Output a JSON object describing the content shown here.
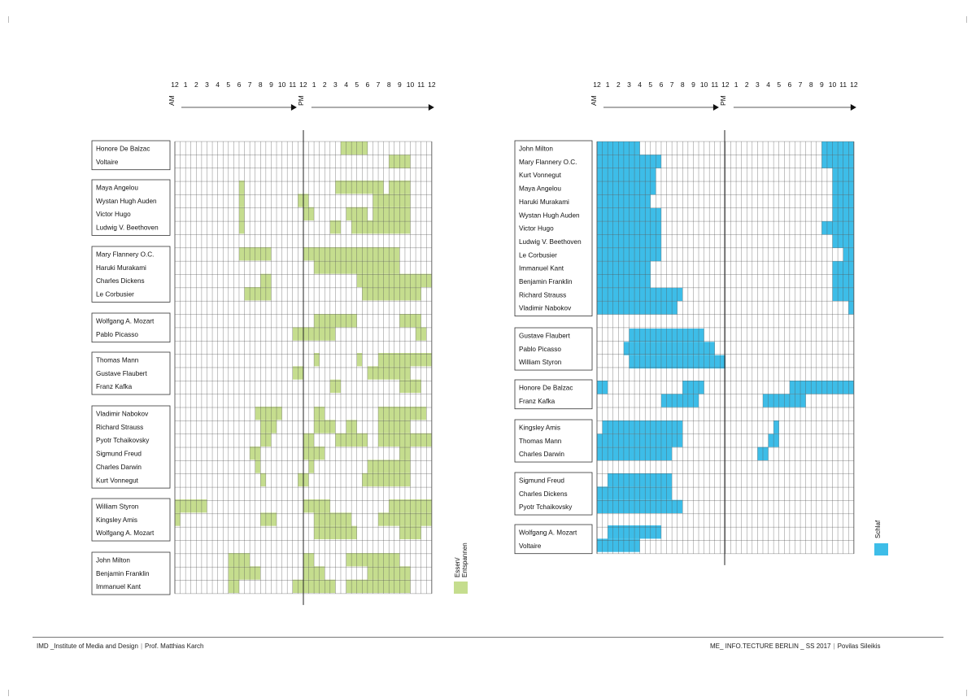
{
  "footer": {
    "institute": "IMD _Institute of Media and Design",
    "professor": "Prof. Matthias Karch",
    "course": "ME_ INFO.TECTURE BERLIN _ SS 2017",
    "author": "Povilas Sileikis"
  },
  "chart_data": [
    {
      "type": "heatmap",
      "legend": "Essen/\nEntspannen",
      "legend_placement": "bottom-right",
      "color": "#c5dd8e",
      "am_label": "AM",
      "pm_label": "PM",
      "hour_ticks": [
        "12",
        "1",
        "2",
        "3",
        "4",
        "5",
        "6",
        "7",
        "8",
        "9",
        "10",
        "11",
        "12",
        "1",
        "2",
        "3",
        "4",
        "5",
        "6",
        "7",
        "8",
        "9",
        "10",
        "11",
        "12"
      ],
      "groups": [
        {
          "names": [
            "Honore De Balzac",
            "Voltaire"
          ],
          "rows": [
            [
              [
                31,
                36
              ]
            ],
            [
              [
                40,
                44
              ]
            ]
          ]
        },
        {
          "names": [
            "Maya Angelou",
            "Wystan Hugh Auden",
            "Victor Hugo",
            "Ludwig V. Beethoven"
          ],
          "rows": [
            [
              [
                12,
                13
              ],
              [
                30,
                39
              ],
              [
                40,
                44
              ]
            ],
            [
              [
                12,
                13
              ],
              [
                23,
                25
              ],
              [
                37,
                44
              ]
            ],
            [
              [
                12,
                13
              ],
              [
                24,
                26
              ],
              [
                32,
                36
              ],
              [
                37,
                44
              ]
            ],
            [
              [
                12,
                13
              ],
              [
                29,
                31
              ],
              [
                33,
                44
              ]
            ]
          ]
        },
        {
          "names": [
            "Mary Flannery O.C.",
            "Haruki Murakami",
            "Charles Dickens",
            "Le Corbusier"
          ],
          "rows": [
            [
              [
                12,
                18
              ],
              [
                24,
                42
              ]
            ],
            [
              [
                26,
                42
              ]
            ],
            [
              [
                16,
                18
              ],
              [
                34,
                48
              ]
            ],
            [
              [
                13,
                18
              ],
              [
                35,
                46
              ]
            ]
          ]
        },
        {
          "names": [
            "Wolfgang A. Mozart",
            "Pablo Picasso"
          ],
          "rows": [
            [
              [
                26,
                34
              ],
              [
                42,
                46
              ]
            ],
            [
              [
                22,
                30
              ],
              [
                45,
                47
              ]
            ]
          ]
        },
        {
          "names": [
            "Thomas Mann",
            "Gustave Flaubert",
            "Franz Kafka"
          ],
          "rows": [
            [
              [
                26,
                27
              ],
              [
                34,
                35
              ],
              [
                38,
                48
              ]
            ],
            [
              [
                22,
                24
              ],
              [
                36,
                44
              ]
            ],
            [
              [
                29,
                31
              ],
              [
                42,
                46
              ]
            ]
          ]
        },
        {
          "names": [
            "Vladimir Nabokov",
            "Richard Strauss",
            "Pyotr Tchaikovsky",
            "Sigmund Freud",
            "Charles Darwin",
            "Kurt Vonnegut"
          ],
          "rows": [
            [
              [
                15,
                20
              ],
              [
                26,
                28
              ],
              [
                38,
                47
              ]
            ],
            [
              [
                16,
                19
              ],
              [
                26,
                30
              ],
              [
                32,
                34
              ],
              [
                38,
                44
              ]
            ],
            [
              [
                16,
                18
              ],
              [
                24,
                26
              ],
              [
                30,
                36
              ],
              [
                38,
                48
              ]
            ],
            [
              [
                14,
                16
              ],
              [
                24,
                28
              ],
              [
                42,
                44
              ]
            ],
            [
              [
                15,
                16
              ],
              [
                25,
                26
              ],
              [
                36,
                44
              ]
            ],
            [
              [
                16,
                17
              ],
              [
                23,
                25
              ],
              [
                35,
                44
              ]
            ]
          ]
        },
        {
          "names": [
            "William Styron",
            "Kingsley Amis",
            "Wolfgang A. Mozart"
          ],
          "rows": [
            [
              [
                0,
                6
              ],
              [
                24,
                29
              ],
              [
                40,
                48
              ]
            ],
            [
              [
                0,
                1
              ],
              [
                16,
                19
              ],
              [
                26,
                33
              ],
              [
                38,
                48
              ]
            ],
            [
              [
                26,
                34
              ],
              [
                42,
                46
              ]
            ]
          ]
        },
        {
          "names": [
            "John Milton",
            "Benjamin Franklin",
            "Immanuel Kant"
          ],
          "rows": [
            [
              [
                10,
                14
              ],
              [
                24,
                26
              ],
              [
                32,
                42
              ]
            ],
            [
              [
                10,
                16
              ],
              [
                24,
                28
              ],
              [
                36,
                44
              ]
            ],
            [
              [
                10,
                12
              ],
              [
                22,
                30
              ],
              [
                32,
                44
              ]
            ]
          ]
        }
      ]
    },
    {
      "type": "heatmap",
      "legend": "Schlaf",
      "legend_placement": "bottom-right",
      "color": "#3dbde8",
      "am_label": "AM",
      "pm_label": "PM",
      "hour_ticks": [
        "12",
        "1",
        "2",
        "3",
        "4",
        "5",
        "6",
        "7",
        "8",
        "9",
        "10",
        "11",
        "12",
        "1",
        "2",
        "3",
        "4",
        "5",
        "6",
        "7",
        "8",
        "9",
        "10",
        "11",
        "12"
      ],
      "groups": [
        {
          "names": [
            "John Milton",
            "Mary Flannery O.C.",
            "Kurt Vonnegut",
            "Maya Angelou",
            "Haruki Murakami",
            "Wystan Hugh Auden",
            "Victor Hugo",
            "Ludwig V. Beethoven",
            "Le Corbusier",
            "Immanuel Kant",
            "Benjamin Franklin",
            "Richard Strauss",
            "Vladimir Nabokov"
          ],
          "rows": [
            [
              [
                0,
                8
              ],
              [
                42,
                48
              ]
            ],
            [
              [
                0,
                12
              ],
              [
                42,
                48
              ]
            ],
            [
              [
                0,
                11
              ],
              [
                44,
                48
              ]
            ],
            [
              [
                0,
                11
              ],
              [
                44,
                48
              ]
            ],
            [
              [
                0,
                10
              ],
              [
                44,
                48
              ]
            ],
            [
              [
                0,
                12
              ],
              [
                44,
                48
              ]
            ],
            [
              [
                0,
                12
              ],
              [
                42,
                48
              ]
            ],
            [
              [
                0,
                12
              ],
              [
                44,
                48
              ]
            ],
            [
              [
                0,
                12
              ],
              [
                46,
                48
              ]
            ],
            [
              [
                0,
                10
              ],
              [
                44,
                48
              ]
            ],
            [
              [
                0,
                10
              ],
              [
                44,
                48
              ]
            ],
            [
              [
                0,
                16
              ],
              [
                44,
                48
              ]
            ],
            [
              [
                0,
                15
              ],
              [
                47,
                48
              ]
            ]
          ]
        },
        {
          "names": [
            "Gustave Flaubert",
            "Pablo Picasso",
            "William Styron"
          ],
          "rows": [
            [
              [
                6,
                20
              ]
            ],
            [
              [
                5,
                22
              ]
            ],
            [
              [
                6,
                24
              ]
            ]
          ]
        },
        {
          "names": [
            "Honore De Balzac",
            "Franz Kafka"
          ],
          "rows": [
            [
              [
                0,
                2
              ],
              [
                16,
                20
              ],
              [
                36,
                48
              ]
            ],
            [
              [
                12,
                19
              ],
              [
                31,
                39
              ]
            ]
          ]
        },
        {
          "names": [
            "Kingsley Amis",
            "Thomas Mann",
            "Charles Darwin"
          ],
          "rows": [
            [
              [
                1,
                16
              ],
              [
                33,
                34
              ]
            ],
            [
              [
                0,
                16
              ],
              [
                32,
                34
              ]
            ],
            [
              [
                0,
                14
              ],
              [
                30,
                32
              ]
            ]
          ]
        },
        {
          "names": [
            "Sigmund Freud",
            "Charles Dickens",
            "Pyotr Tchaikovsky"
          ],
          "rows": [
            [
              [
                2,
                14
              ]
            ],
            [
              [
                0,
                14
              ]
            ],
            [
              [
                0,
                16
              ]
            ]
          ]
        },
        {
          "names": [
            "Wolfgang A. Mozart",
            "Voltaire"
          ],
          "rows": [
            [
              [
                2,
                12
              ]
            ],
            [
              [
                0,
                8
              ]
            ]
          ]
        }
      ]
    }
  ]
}
